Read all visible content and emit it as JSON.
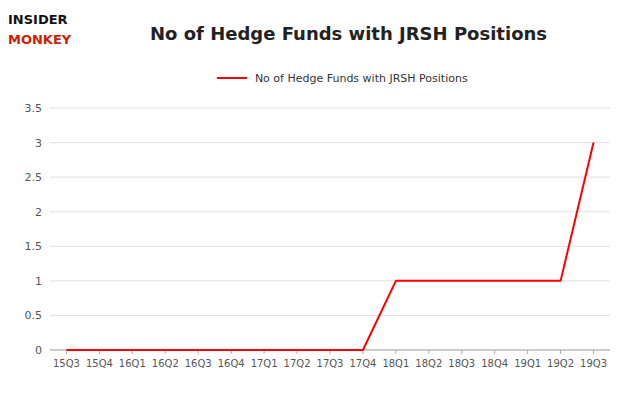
{
  "chart_data": {
    "type": "line",
    "title": "No of Hedge Funds with JRSH Positions",
    "categories": [
      "15Q3",
      "15Q4",
      "16Q1",
      "16Q2",
      "16Q3",
      "16Q4",
      "17Q1",
      "17Q2",
      "17Q3",
      "17Q4",
      "18Q1",
      "18Q2",
      "18Q3",
      "18Q4",
      "19Q1",
      "19Q2",
      "19Q3"
    ],
    "series": [
      {
        "name": "No of Hedge Funds with JRSH Positions",
        "color": "#ff0000",
        "values": [
          0,
          0,
          0,
          0,
          0,
          0,
          0,
          0,
          0,
          0,
          1,
          1,
          1,
          1,
          1,
          1,
          3
        ]
      }
    ],
    "ylim": [
      0,
      3.5
    ],
    "yticks": [
      0,
      0.5,
      1,
      1.5,
      2,
      2.5,
      3,
      3.5
    ],
    "grid": true,
    "legend": "top",
    "annotations": [
      {
        "text": "INSIDER",
        "color": "#111111"
      },
      {
        "text": "MONKEY",
        "color": "#cc2200"
      }
    ]
  }
}
